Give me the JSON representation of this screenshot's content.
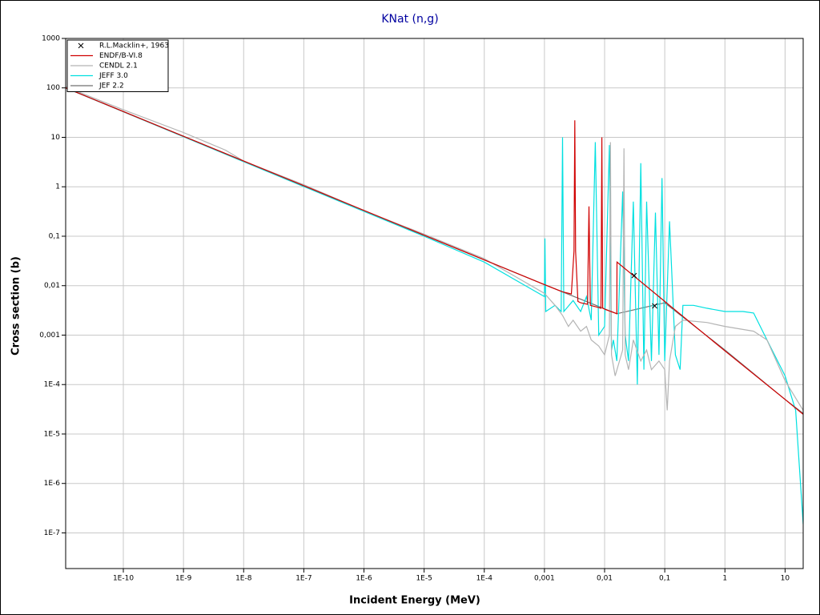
{
  "chart_data": {
    "type": "line",
    "title": "KNat (n,g)",
    "x_label": "Incident Energy (MeV)",
    "y_label": "Cross section (b)",
    "log_x": true,
    "log_y": true,
    "grid": true,
    "legend": "upper left",
    "xlim": [
      1.1e-11,
      20
    ],
    "ylim": [
      1.9e-08,
      1000
    ],
    "xticks": [
      {
        "value": 1e-10,
        "label": "1E-10"
      },
      {
        "value": 1e-09,
        "label": "1E-9"
      },
      {
        "value": 1e-08,
        "label": "1E-8"
      },
      {
        "value": 1e-07,
        "label": "1E-7"
      },
      {
        "value": 1e-06,
        "label": "1E-6"
      },
      {
        "value": 1e-05,
        "label": "1E-5"
      },
      {
        "value": 0.0001,
        "label": "1E-4"
      },
      {
        "value": 0.001,
        "label": "0,001"
      },
      {
        "value": 0.01,
        "label": "0,01"
      },
      {
        "value": 0.1,
        "label": "0,1"
      },
      1,
      10
    ],
    "yticks": [
      1000,
      100,
      10,
      1,
      {
        "value": 0.1,
        "label": "0,1"
      },
      {
        "value": 0.01,
        "label": "0,01"
      },
      {
        "value": 0.001,
        "label": "0,001"
      },
      {
        "value": 0.0001,
        "label": "1E-4"
      },
      {
        "value": 1e-05,
        "label": "1E-5"
      },
      {
        "value": 1e-06,
        "label": "1E-6"
      },
      {
        "value": 1e-07,
        "label": "1E-7"
      }
    ],
    "series": [
      {
        "name": "R.L.Macklin+, 1963",
        "type": "scatter",
        "color": "#000000",
        "x": [
          0.031,
          0.068
        ],
        "values": [
          0.016,
          0.0039
        ]
      },
      {
        "name": "ENDF/B-VI.8",
        "color": "#d00000",
        "x": [
          1.1e-11,
          1e-09,
          1e-07,
          1e-05,
          0.001,
          0.002,
          0.0028,
          0.0031,
          0.0032,
          0.0033,
          0.0036,
          0.004,
          0.0052,
          0.0055,
          0.0058,
          0.008,
          0.0087,
          0.009,
          0.0093,
          0.011,
          0.015,
          0.016,
          0.0161,
          0.1,
          1,
          10,
          20
        ],
        "values": [
          100,
          10.5,
          1.05,
          0.105,
          0.0105,
          0.0075,
          0.0068,
          0.05,
          22,
          0.05,
          0.0048,
          0.0045,
          0.0042,
          0.4,
          0.004,
          0.0036,
          0.0035,
          10,
          0.0035,
          0.0032,
          0.0028,
          0.0027,
          0.03,
          0.0048,
          0.00048,
          5e-05,
          2.5e-05
        ]
      },
      {
        "name": "CENDL 2.1",
        "color": "#b4b4b4",
        "x": [
          1.1e-11,
          1e-10,
          1e-09,
          5e-09,
          1e-08,
          1e-07,
          1e-06,
          1e-05,
          0.0001,
          0.001,
          0.0015,
          0.002,
          0.0025,
          0.003,
          0.004,
          0.005,
          0.006,
          0.008,
          0.01,
          0.012,
          0.0125,
          0.013,
          0.015,
          0.02,
          0.021,
          0.022,
          0.025,
          0.03,
          0.04,
          0.05,
          0.06,
          0.08,
          0.1,
          0.11,
          0.12,
          0.15,
          0.2,
          0.5,
          1,
          3,
          5,
          10,
          20
        ],
        "values": [
          105,
          36,
          12.5,
          5.5,
          3.3,
          1.1,
          0.33,
          0.11,
          0.035,
          0.007,
          0.004,
          0.0025,
          0.0015,
          0.002,
          0.0012,
          0.0015,
          0.0008,
          0.0006,
          0.0004,
          0.001,
          8,
          0.0004,
          0.00015,
          0.0005,
          6,
          0.0004,
          0.0002,
          0.0008,
          0.0003,
          0.0005,
          0.0002,
          0.0003,
          0.0002,
          3e-05,
          0.0003,
          0.0015,
          0.002,
          0.0018,
          0.0015,
          0.0012,
          0.0008,
          0.00012,
          3e-05
        ]
      },
      {
        "name": "JEFF 3.0",
        "color": "#00e0e0",
        "x": [
          1.1e-11,
          1e-08,
          1e-05,
          0.0001,
          0.001,
          0.00102,
          0.00105,
          0.0015,
          0.0019,
          0.002,
          0.0021,
          0.003,
          0.004,
          0.005,
          0.006,
          0.007,
          0.008,
          0.01,
          0.012,
          0.013,
          0.014,
          0.016,
          0.02,
          0.022,
          0.025,
          0.03,
          0.035,
          0.04,
          0.045,
          0.05,
          0.06,
          0.07,
          0.08,
          0.09,
          0.1,
          0.12,
          0.15,
          0.18,
          0.2,
          0.3,
          0.5,
          1,
          2,
          3,
          5,
          10,
          15,
          20
        ],
        "values": [
          100,
          3.2,
          0.1,
          0.03,
          0.006,
          0.09,
          0.003,
          0.004,
          0.003,
          10,
          0.003,
          0.005,
          0.003,
          0.006,
          0.002,
          8,
          0.001,
          0.0015,
          7,
          0.0005,
          0.0008,
          0.0003,
          0.8,
          0.001,
          0.0003,
          0.5,
          0.0001,
          3,
          0.0002,
          0.5,
          0.0003,
          0.3,
          0.0004,
          1.5,
          0.0003,
          0.2,
          0.0004,
          0.0002,
          0.004,
          0.004,
          0.0035,
          0.003,
          0.003,
          0.0028,
          0.0008,
          0.00015,
          3e-05,
          1.5e-07
        ]
      },
      {
        "name": "JEF 2.2",
        "color": "#707070",
        "x": [
          1.1e-11,
          1e-05,
          0.001,
          0.016,
          0.1,
          1,
          10,
          20
        ],
        "values": [
          100,
          0.105,
          0.0105,
          0.0027,
          0.0045,
          0.0005,
          5e-05,
          2.6e-05
        ]
      }
    ]
  }
}
